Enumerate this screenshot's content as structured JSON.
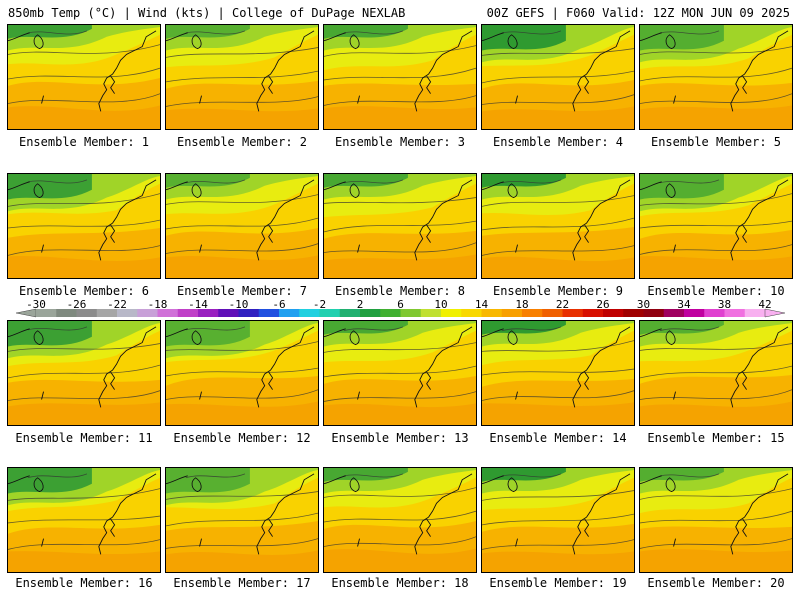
{
  "header": {
    "left": "850mb Temp (°C) | Wind (kts) | College of DuPage NEXLAB",
    "right": "00Z GEFS | F060 Valid: 12Z MON JUN 09 2025"
  },
  "members": [
    {
      "label": "Ensemble Member: 1"
    },
    {
      "label": "Ensemble Member: 2"
    },
    {
      "label": "Ensemble Member: 3"
    },
    {
      "label": "Ensemble Member: 4"
    },
    {
      "label": "Ensemble Member: 5"
    },
    {
      "label": "Ensemble Member: 6"
    },
    {
      "label": "Ensemble Member: 7"
    },
    {
      "label": "Ensemble Member: 8"
    },
    {
      "label": "Ensemble Member: 9"
    },
    {
      "label": "Ensemble Member: 10"
    },
    {
      "label": "Ensemble Member: 11"
    },
    {
      "label": "Ensemble Member: 12"
    },
    {
      "label": "Ensemble Member: 13"
    },
    {
      "label": "Ensemble Member: 14"
    },
    {
      "label": "Ensemble Member: 15"
    },
    {
      "label": "Ensemble Member: 16"
    },
    {
      "label": "Ensemble Member: 17"
    },
    {
      "label": "Ensemble Member: 18"
    },
    {
      "label": "Ensemble Member: 19"
    },
    {
      "label": "Ensemble Member: 20"
    }
  ],
  "colorbar": {
    "min": -30,
    "max": 42,
    "step": 2,
    "tick_labels": [
      "-30",
      "-26",
      "-22",
      "-18",
      "-14",
      "-10",
      "-6",
      "-2",
      "2",
      "6",
      "10",
      "14",
      "18",
      "22",
      "26",
      "30",
      "34",
      "38",
      "42"
    ],
    "colors": [
      "#9aa59a",
      "#7f8a7f",
      "#8c8c8c",
      "#a6a6a6",
      "#b8b8c8",
      "#c8a0d8",
      "#d070d8",
      "#c040c8",
      "#9a20c0",
      "#6010b8",
      "#3020c0",
      "#2050e0",
      "#20a0f0",
      "#20d0e0",
      "#20d0b0",
      "#20b070",
      "#20a040",
      "#40b030",
      "#80c830",
      "#c0e030",
      "#f0f000",
      "#f8d800",
      "#f8b800",
      "#f8a000",
      "#f88000",
      "#f06000",
      "#e83000",
      "#d81000",
      "#c00000",
      "#a00000",
      "#900010",
      "#a00060",
      "#c000a0",
      "#e040d0",
      "#f070e0",
      "#f8b0f0"
    ]
  }
}
